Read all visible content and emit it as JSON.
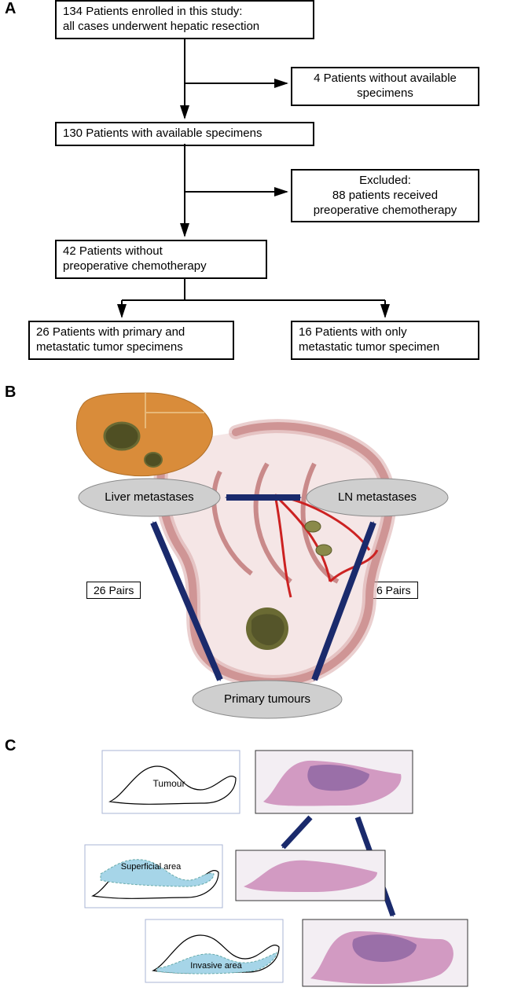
{
  "panelA": {
    "label": "A",
    "boxes": {
      "b1": "134 Patients enrolled in this study:\nall cases underwent hepatic resection",
      "b2": "4 Patients without available\nspecimens",
      "b3": "130 Patients with available specimens",
      "b4": "Excluded:\n88 patients received\npreoperative chemotherapy",
      "b5": "42 Patients without\npreoperative chemotherapy",
      "b6": "26 Patients with primary and\nmetastatic tumor specimens",
      "b7": "16 Patients with only\nmetastatic tumor specimen"
    },
    "arrow_color": "#000000",
    "box_border_color": "#000000"
  },
  "panelB": {
    "label": "B",
    "ellipses": {
      "liver": "Liver metastases",
      "ln": "LN metastases",
      "primary": "Primary tumours"
    },
    "pair_labels": {
      "liver_ln": "6 Pairs",
      "liver_primary": "26 Pairs",
      "ln_primary": "6 Pairs"
    },
    "colors": {
      "liver_body": "#d98c3a",
      "liver_tumor": "#6a6a33",
      "intestine_outline": "#c98a8a",
      "intestine_fill": "#f5e6e6",
      "vessel": "#cc2222",
      "ln_node": "#8a8a4a",
      "primary_tumor": "#6a6a33",
      "ellipse_fill": "#cfcfcf",
      "ellipse_stroke": "#8a8a8a",
      "arrow": "#1a2a6c"
    }
  },
  "panelC": {
    "label": "C",
    "region_labels": {
      "tumour": "Tumour",
      "superficial": "Superficial area",
      "invasive": "Invasive area"
    },
    "colors": {
      "outline": "#4a4a8a",
      "outline_thin": "#000000",
      "highlight_fill": "#a6d5e8",
      "histology_pink": "#d29ac2",
      "histology_purple": "#9a6fa8",
      "histology_bg": "#f3eef3",
      "arrow": "#1a2a6c",
      "thumbnail_border": "#aab4d4"
    }
  }
}
